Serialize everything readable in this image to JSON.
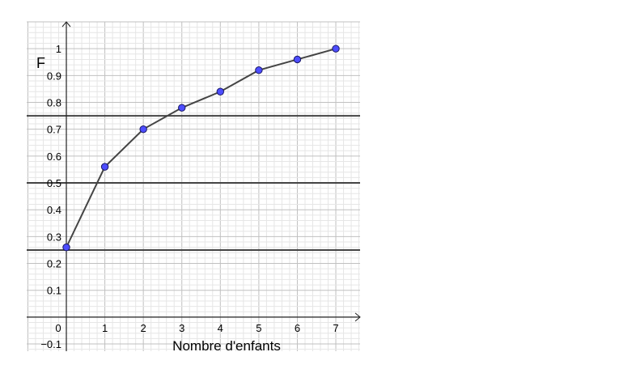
{
  "chart_data": {
    "type": "line",
    "title": "",
    "xlabel": "Nombre d'enfants",
    "ylabel": "F",
    "x": [
      0,
      1,
      2,
      3,
      4,
      5,
      6,
      7
    ],
    "values": [
      0.26,
      0.56,
      0.7,
      0.78,
      0.84,
      0.92,
      0.96,
      1.0
    ],
    "xlim": [
      -1.03,
      7.63
    ],
    "ylim": [
      -0.127,
      1.1
    ],
    "x_ticks": [
      0,
      1,
      2,
      3,
      4,
      5,
      6,
      7
    ],
    "x_tick_labels": [
      "0",
      "1",
      "2",
      "3",
      "4",
      "5",
      "6",
      "7"
    ],
    "y_ticks": [
      -0.1,
      0.1,
      0.2,
      0.3,
      0.4,
      0.5,
      0.6,
      0.7,
      0.8,
      0.9,
      1
    ],
    "y_tick_labels": [
      "−0.1",
      "0.1",
      "0.2",
      "0.3",
      "0.4",
      "0.5",
      "0.6",
      "0.7",
      "0.8",
      "0.9",
      "1"
    ],
    "horizontal_lines": [
      0.25,
      0.5,
      0.75
    ],
    "grid": true,
    "colors": {
      "points": "#4d4dff",
      "line": "#444444",
      "hlines": "#444444",
      "grid_major": "#c0c0c0",
      "grid_minor": "#e6e6e6"
    }
  }
}
